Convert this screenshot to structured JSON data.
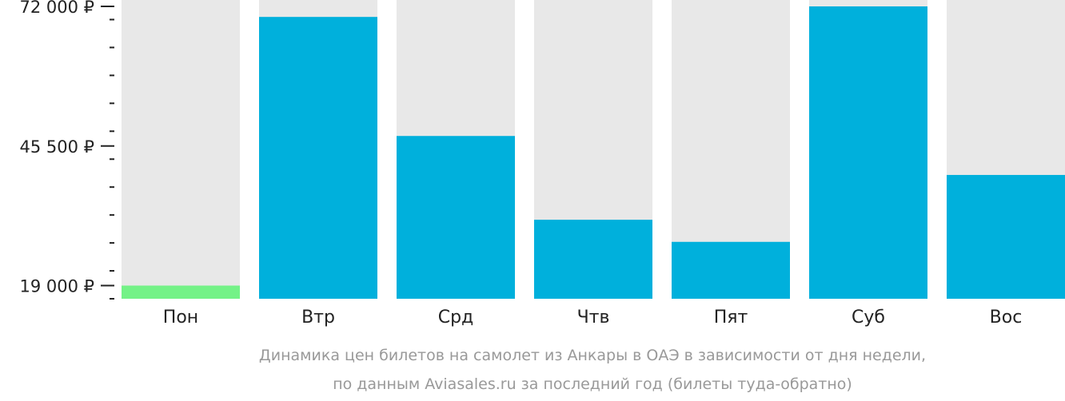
{
  "chart_data": {
    "type": "bar",
    "categories": [
      "Пон",
      "Втр",
      "Срд",
      "Чтв",
      "Пят",
      "Суб",
      "Вос"
    ],
    "values": [
      19000,
      70000,
      47400,
      31500,
      27300,
      72000,
      40000
    ],
    "ylim": [
      16500,
      72000
    ],
    "yticks": [
      {
        "value": 72000,
        "label": "72 000 ₽"
      },
      {
        "value": 45500,
        "label": "45 500 ₽"
      },
      {
        "value": 19000,
        "label": "19 000 ₽"
      }
    ],
    "minor_tick_step": 5300,
    "caption_lines": [
      "Динамика цен билетов на самолет из Анкары в ОАЭ в зависимости от дня недели,",
      "по данным Aviasales.ru за последний год (билеты туда-обратно)"
    ],
    "colors": {
      "bar": "#00b0dc",
      "lowest_bar": "#74f287",
      "track": "#e8e8e8",
      "axis": "#222222",
      "caption": "#999999"
    }
  }
}
